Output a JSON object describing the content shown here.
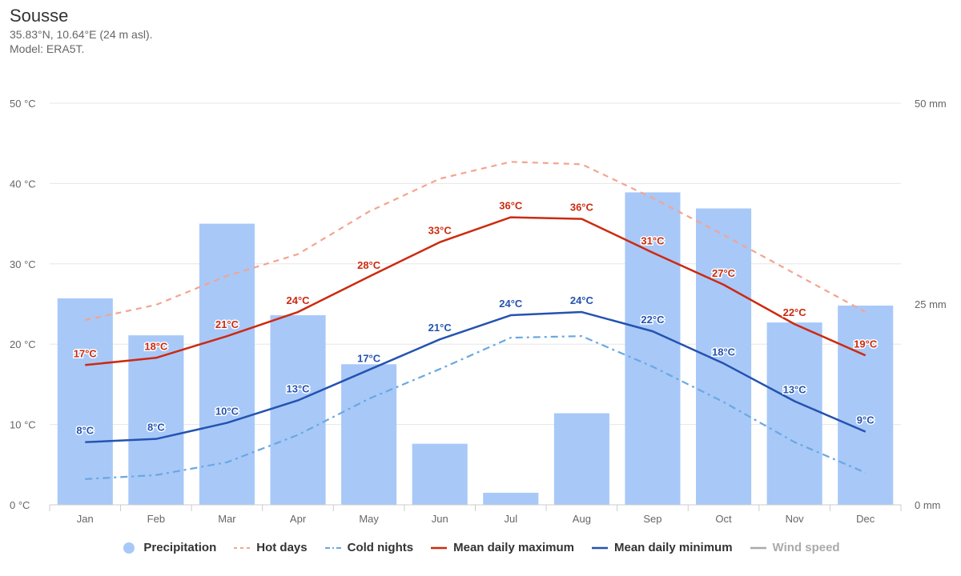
{
  "header": {
    "title": "Sousse",
    "coords": "35.83°N, 10.64°E (24 m asl).",
    "model": "Model: ERA5T."
  },
  "colors": {
    "precipitation": "#a8c8f8",
    "hot_days": "#f4a490",
    "cold_nights": "#6aa8e0",
    "mean_max": "#cc2a10",
    "mean_min": "#2453b0",
    "wind": "#aaaaaa",
    "grid": "#e6e6e6"
  },
  "chart_data": {
    "type": "bar",
    "categories": [
      "Jan",
      "Feb",
      "Mar",
      "Apr",
      "May",
      "Jun",
      "Jul",
      "Aug",
      "Sep",
      "Oct",
      "Nov",
      "Dec"
    ],
    "left_axis": {
      "ticks": [
        "0 °C",
        "10 °C",
        "20 °C",
        "30 °C",
        "40 °C",
        "50 °C"
      ],
      "range": [
        0,
        50
      ]
    },
    "right_axis": {
      "ticks": [
        "0 mm",
        "25 mm",
        "50 mm"
      ],
      "range": [
        0,
        50
      ]
    },
    "precipitation_mm": [
      25.7,
      21.1,
      35.0,
      23.6,
      17.5,
      7.6,
      1.5,
      11.4,
      38.9,
      36.9,
      22.7,
      24.8
    ],
    "hot_days": [
      23.0,
      24.9,
      28.5,
      31.2,
      36.5,
      40.6,
      42.7,
      42.4,
      38.2,
      33.6,
      28.8,
      24.0
    ],
    "cold_nights": [
      3.2,
      3.7,
      5.3,
      8.7,
      13.2,
      16.9,
      20.8,
      21.0,
      17.2,
      12.8,
      7.8,
      4.0
    ],
    "mean_max": [
      17.4,
      18.3,
      21.0,
      24.0,
      28.4,
      32.7,
      35.8,
      35.6,
      31.4,
      27.4,
      22.5,
      18.6
    ],
    "mean_min": [
      7.8,
      8.2,
      10.2,
      13.0,
      16.8,
      20.6,
      23.6,
      24.0,
      21.6,
      17.6,
      12.9,
      9.1
    ],
    "mean_max_labels": [
      "17°C",
      "18°C",
      "21°C",
      "24°C",
      "28°C",
      "33°C",
      "36°C",
      "36°C",
      "31°C",
      "27°C",
      "22°C",
      "19°C"
    ],
    "mean_min_labels": [
      "8°C",
      "8°C",
      "10°C",
      "13°C",
      "17°C",
      "21°C",
      "24°C",
      "24°C",
      "22°C",
      "18°C",
      "13°C",
      "9°C"
    ],
    "legend": [
      "Precipitation",
      "Hot days",
      "Cold nights",
      "Mean daily maximum",
      "Mean daily minimum",
      "Wind speed"
    ],
    "legend_position": "bottom",
    "grid": true
  }
}
